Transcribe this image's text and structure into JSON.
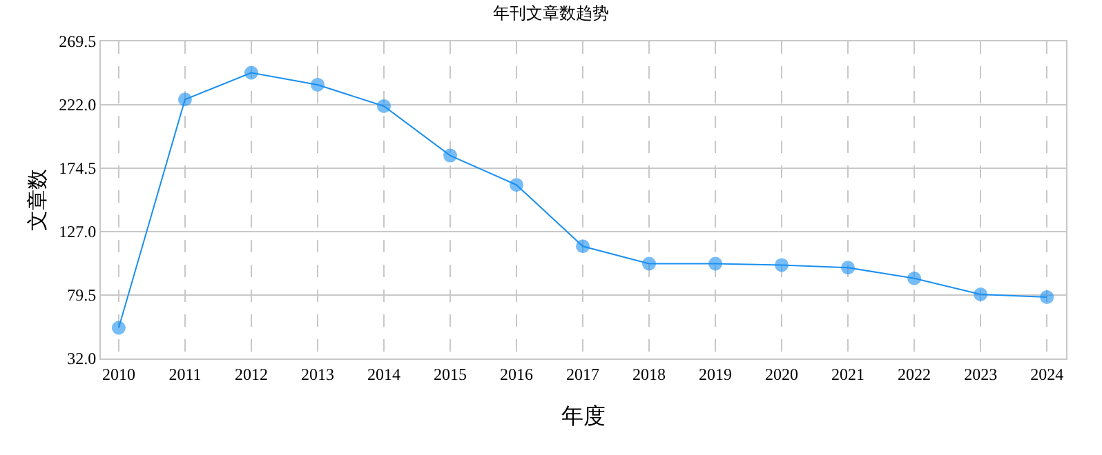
{
  "chart_data": {
    "type": "line",
    "title": "年刊文章数趋势",
    "xlabel": "年度",
    "ylabel": "文章数",
    "x": [
      2010,
      2011,
      2012,
      2013,
      2014,
      2015,
      2016,
      2017,
      2018,
      2019,
      2020,
      2021,
      2022,
      2023,
      2024
    ],
    "series": [
      {
        "color": "#1a8ff0",
        "values": [
          55,
          226,
          246,
          237,
          221,
          184,
          162,
          116,
          103,
          103,
          102,
          100,
          92,
          80,
          78
        ]
      }
    ],
    "xlim": [
      2009.73,
      2024.29
    ],
    "xticks": [
      2010,
      2011,
      2012,
      2013,
      2014,
      2015,
      2016,
      2017,
      2018,
      2019,
      2020,
      2021,
      2022,
      2023,
      2024
    ],
    "ylim": [
      32,
      269.5
    ],
    "yticks": [
      {
        "value": 32,
        "label": "32.0"
      },
      {
        "value": 79.5,
        "label": "79.5"
      },
      {
        "value": 127,
        "label": "127.0"
      },
      {
        "value": 174.5,
        "label": "174.5"
      },
      {
        "value": 222,
        "label": "222.0"
      },
      {
        "value": 269.5,
        "label": "269.5"
      }
    ],
    "grid": true,
    "marker": "circle",
    "line_style": "solid"
  }
}
